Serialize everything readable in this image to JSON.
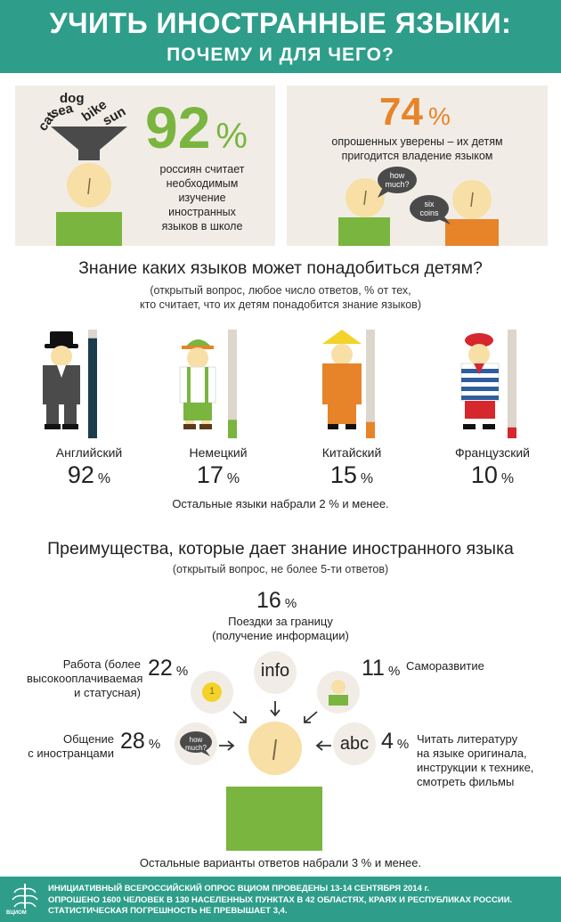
{
  "header": {
    "title": "УЧИТЬ ИНОСТРАННЫЕ ЯЗЫКИ:",
    "subtitle": "ПОЧЕМУ И ДЛЯ ЧЕГО?"
  },
  "panel_left": {
    "words": [
      "dog",
      "sea",
      "bike",
      "cat",
      "sun"
    ],
    "value": "92",
    "pct": "%",
    "text": [
      "россиян считает",
      "необходимым",
      "изучение",
      "иностранных",
      "языков в школе"
    ]
  },
  "panel_right": {
    "value": "74",
    "pct": "%",
    "text": [
      "опрошенных уверены – их детям",
      "пригодится владение языком"
    ],
    "bubble1": [
      "how",
      "much?"
    ],
    "bubble2": [
      "six",
      "coins"
    ]
  },
  "languages": {
    "title": "Знание каких языков может понадобиться детям?",
    "subtitle": [
      "(открытый вопрос, любое число ответов, % от тех,",
      "кто считает, что их детям понадобится знание языков)"
    ],
    "items": [
      {
        "name": "Английский",
        "value": 92,
        "pct": "%",
        "color": "#1b3c4c"
      },
      {
        "name": "Немецкий",
        "value": 17,
        "pct": "%",
        "color": "#7ab53f"
      },
      {
        "name": "Китайский",
        "value": 15,
        "pct": "%",
        "color": "#e7842a"
      },
      {
        "name": "Французский",
        "value": 10,
        "pct": "%",
        "color": "#d6262e"
      }
    ],
    "footnote": "Остальные языки набрали 2 % и менее."
  },
  "advantages": {
    "title": "Преимущества, которые дает знание иностранного языка",
    "subtitle": "(открытый вопрос, не более 5-ти ответов)",
    "top": {
      "value": "16",
      "pct": "%",
      "text": [
        "Поездки за границу",
        "(получение информации)"
      ]
    },
    "work": {
      "value": "22",
      "pct": "%",
      "text": [
        "Работа (более",
        "высокооплачиваемая",
        "и статусная)"
      ]
    },
    "self": {
      "value": "11",
      "pct": "%",
      "text": [
        "Саморазвитие"
      ]
    },
    "talk": {
      "value": "28",
      "pct": "%",
      "text": [
        "Общение",
        "с иностранцами"
      ]
    },
    "read": {
      "value": "4",
      "pct": "%",
      "text": [
        "Читать литературу",
        "на языке оригинала,",
        "инструкции к технике,",
        "смотреть фильмы"
      ]
    },
    "icons": {
      "info": "info",
      "coin": "1",
      "abc": "abc",
      "bubble": [
        "how",
        "much?"
      ]
    },
    "footnote": "Остальные варианты ответов набрали 3 % и менее."
  },
  "footer": {
    "logo": "ВЦИОМ",
    "lines": [
      "ИНИЦИАТИВНЫЙ ВСЕРОССИЙСКИЙ ОПРОС ВЦИОМ ПРОВЕДЕНЫ 13-14 СЕНТЯБРЯ 2014 г.",
      "ОПРОШЕНО 1600 ЧЕЛОВЕК В 130 НАСЕЛЕННЫХ ПУНКТАХ В 42 ОБЛАСТЯХ, КРАЯХ И РЕСПУБЛИКАХ РОССИИ.",
      "СТАТИСТИЧЕСКАЯ ПОГРЕШНОСТЬ НЕ ПРЕВЫШАЕТ 3,4."
    ]
  }
}
